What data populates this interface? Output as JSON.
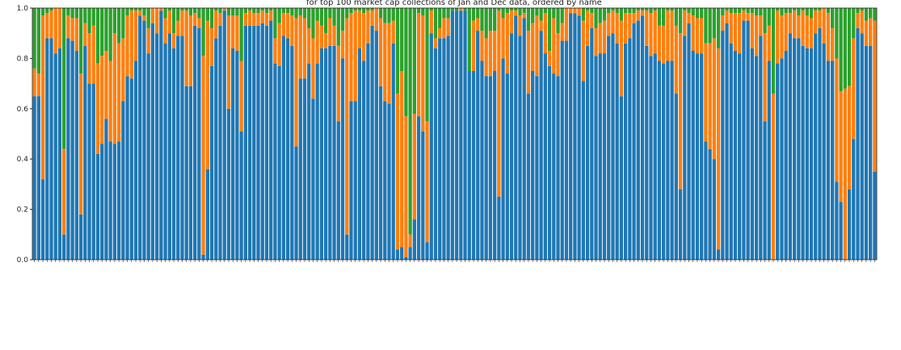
{
  "chart_data": {
    "type": "bar",
    "stacked": true,
    "title": "for top 100 market cap collections of Jan and Dec data, ordered by name",
    "xlabel": "",
    "ylabel": "",
    "ylim": [
      0,
      1.0
    ],
    "yticks": [
      "0.0",
      "0.2",
      "0.4",
      "0.6",
      "0.8",
      "1.0"
    ],
    "colors": {
      "series1": "#1f77b4",
      "series2": "#ff7f0e",
      "series3": "#2ca02c"
    },
    "note": "Category labels are too small to read; each bar is one collection, 200 in total",
    "blue": [
      0.65,
      0.65,
      0.32,
      0.88,
      0.88,
      0.82,
      0.84,
      0.1,
      0.88,
      0.87,
      0.83,
      0.18,
      0.85,
      0.7,
      0.7,
      0.42,
      0.46,
      0.56,
      0.47,
      0.46,
      0.47,
      0.63,
      0.73,
      0.72,
      0.79,
      0.97,
      0.95,
      0.82,
      0.94,
      0.9,
      0.99,
      0.86,
      0.9,
      0.84,
      0.89,
      0.89,
      0.69,
      0.69,
      0.93,
      0.92,
      0.02,
      0.36,
      0.77,
      0.88,
      0.93,
      0.99,
      0.6,
      0.84,
      0.83,
      0.51,
      0.93,
      0.93,
      0.93,
      0.93,
      0.94,
      0.93,
      0.95,
      0.78,
      0.77,
      0.89,
      0.88,
      0.85,
      0.45,
      0.72,
      0.72,
      0.78,
      0.64,
      0.78,
      0.84,
      0.84,
      0.85,
      0.85,
      0.55,
      0.8,
      0.1,
      0.63,
      0.63,
      0.84,
      0.79,
      0.86,
      0.93,
      0.91,
      0.69,
      0.63,
      0.62,
      0.86,
      0.04,
      0.05,
      0.01,
      0.05,
      0.16,
      0.57,
      0.51,
      0.07,
      0.9,
      0.84,
      0.88,
      0.88,
      0.89,
      0.99,
      0.99,
      0.99,
      0.99,
      0.75,
      0.75,
      0.91,
      0.79,
      0.73,
      0.73,
      0.75,
      0.25,
      0.8,
      0.74,
      0.9,
      0.97,
      0.89,
      0.96,
      0.66,
      0.75,
      0.73,
      0.91,
      0.82,
      0.77,
      0.74,
      0.73,
      0.87,
      0.87,
      0.98,
      0.98,
      0.97,
      0.71,
      0.85,
      0.92,
      0.81,
      0.82,
      0.82,
      0.89,
      0.9,
      0.86,
      0.65,
      0.86,
      0.88,
      0.94,
      0.95,
      0.97,
      0.85,
      0.81,
      0.82,
      0.79,
      0.78,
      0.79,
      0.79,
      0.66,
      0.28,
      0.89,
      0.94,
      0.83,
      0.82,
      0.82,
      0.47,
      0.44,
      0.4,
      0.04,
      0.91,
      0.94,
      0.86,
      0.83,
      0.82,
      0.95,
      0.95,
      0.84,
      0.81,
      0.89,
      0.55,
      0.79,
      0.0,
      0.78,
      0.8,
      0.83,
      0.9,
      0.88,
      0.88,
      0.85,
      0.84,
      0.84,
      0.9,
      0.92,
      0.86,
      0.79,
      0.79,
      0.31,
      0.23,
      0.0,
      0.28,
      0.48,
      0.92,
      0.9,
      0.85,
      0.85,
      0.35
    ],
    "blue_plus_orange": [
      0.76,
      0.74,
      0.97,
      0.98,
      0.99,
      1.0,
      1.0,
      0.44,
      0.97,
      0.96,
      0.96,
      0.74,
      0.94,
      0.9,
      0.93,
      0.78,
      0.81,
      0.83,
      0.79,
      0.9,
      0.86,
      0.88,
      0.97,
      0.99,
      0.99,
      0.99,
      0.97,
      0.92,
      1.0,
      1.0,
      1.0,
      0.96,
      0.99,
      0.9,
      0.95,
      0.99,
      0.99,
      0.97,
      0.98,
      0.96,
      0.81,
      0.95,
      0.92,
      0.99,
      0.98,
      1.0,
      0.97,
      0.97,
      0.97,
      0.79,
      0.98,
      0.99,
      0.98,
      0.98,
      0.99,
      0.98,
      0.99,
      0.88,
      0.94,
      0.98,
      0.98,
      0.97,
      0.96,
      0.97,
      0.96,
      0.92,
      0.88,
      0.95,
      0.93,
      0.9,
      0.96,
      0.93,
      0.85,
      0.91,
      0.96,
      0.98,
      0.99,
      0.99,
      0.98,
      0.99,
      0.99,
      1.0,
      0.96,
      0.94,
      0.94,
      0.95,
      0.66,
      0.75,
      0.57,
      0.1,
      0.58,
      0.98,
      0.97,
      0.55,
      0.99,
      0.88,
      0.92,
      0.96,
      0.96,
      0.99,
      0.99,
      1.0,
      0.99,
      0.75,
      0.95,
      0.96,
      0.91,
      0.88,
      0.91,
      0.91,
      0.99,
      0.96,
      0.98,
      0.99,
      0.99,
      0.97,
      0.98,
      0.91,
      0.94,
      0.97,
      0.95,
      0.98,
      0.83,
      0.96,
      0.9,
      0.94,
      1.0,
      1.0,
      1.0,
      1.0,
      0.95,
      0.99,
      0.98,
      0.92,
      0.94,
      0.95,
      0.98,
      0.99,
      0.98,
      0.95,
      0.98,
      0.98,
      0.98,
      0.99,
      0.99,
      0.99,
      0.98,
      0.99,
      0.93,
      0.93,
      0.99,
      0.99,
      0.93,
      0.9,
      0.99,
      0.98,
      0.97,
      0.96,
      0.96,
      0.86,
      0.86,
      0.88,
      0.84,
      0.97,
      0.99,
      0.98,
      0.98,
      0.98,
      0.99,
      0.98,
      0.98,
      0.97,
      0.97,
      0.9,
      0.93,
      0.66,
      0.99,
      0.97,
      0.98,
      0.98,
      0.99,
      0.97,
      0.99,
      0.97,
      0.96,
      0.99,
      0.99,
      1.0,
      0.98,
      0.92,
      0.8,
      0.67,
      0.68,
      0.69,
      0.88,
      0.98,
      0.99,
      0.95,
      0.96,
      0.95
    ]
  }
}
